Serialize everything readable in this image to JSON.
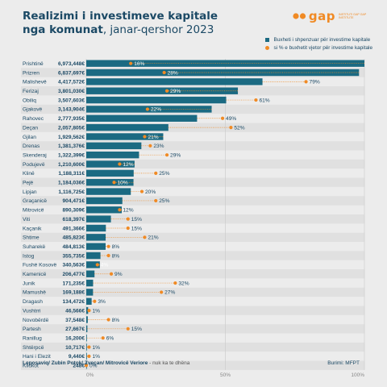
{
  "title": {
    "line1": "Realizimi i investimeve kapitale",
    "line2_bold": "nga komunat",
    "line2_rest": ", janar-qershor 2023"
  },
  "logo": {
    "word": "gap",
    "tagline": "Instituti GAP GAP Institute"
  },
  "legend": {
    "bar": "Buxheti i shpenzuar për investime kapitale",
    "dot": "si % e buxhetit vjetor për investime kapitale"
  },
  "footer": {
    "note_label": "Leposaviq/ Zubin Potok/ Zveçan/ Mitrovicë Veriore",
    "note_text": "- nuk ka te dhëna",
    "source": "Burimi: MFPT"
  },
  "colors": {
    "bar": "#1b6a82",
    "dot": "#f08a24",
    "background": "#ececec",
    "row_alt": "#e0e0e0"
  },
  "chart_data": {
    "type": "bar",
    "orientation": "horizontal",
    "xlim": [
      0,
      100
    ],
    "x_ticks": [
      "0%",
      "50%",
      "100%"
    ],
    "categories": [
      "Prishtinë",
      "Prizren",
      "Malishevë",
      "Ferizaj",
      "Obiliq",
      "Gjakovë",
      "Rahovec",
      "Deçan",
      "Gjilan",
      "Drenas",
      "Skenderaj",
      "Podujevë",
      "Klinë",
      "Pejë",
      "Lipjan",
      "Graçanicë",
      "Mitrovicë",
      "Viti",
      "Kaçanik",
      "Shtime",
      "Suharekë",
      "Istog",
      "Fushë Kosovë",
      "Kamenicë",
      "Junik",
      "Mamushë",
      "Dragash",
      "Vushtrri",
      "Novobërdë",
      "Partesh",
      "Ranillug",
      "Shtërpcë",
      "Hani i Elezit",
      "Kllokot"
    ],
    "series": [
      {
        "name": "Buxheti i shpenzuar për investime kapitale",
        "values": [
          6973448,
          6837697,
          4417572,
          3801030,
          3507603,
          3143904,
          2777935,
          2057805,
          1929562,
          1381376,
          1322399,
          1210600,
          1188311,
          1184036,
          1116725,
          904471,
          890309,
          618397,
          491366,
          485823,
          484813,
          355735,
          340563,
          206477,
          171235,
          169188,
          134472,
          46566,
          37548,
          27667,
          16200,
          10717,
          9440,
          248
        ],
        "labels": [
          "6,973,448€",
          "6,837,697€",
          "4,417,572€",
          "3,801,030€",
          "3,507,603€",
          "3,143,904€",
          "2,777,935€",
          "2,057,805€",
          "1,929,562€",
          "1,381,376€",
          "1,322,399€",
          "1,210,600€",
          "1,188,311€",
          "1,184,036€",
          "1,116,725€",
          "904,471€",
          "890,309€",
          "618,397€",
          "491,366€",
          "485,823€",
          "484,813€",
          "355,735€",
          "340,563€",
          "206,477€",
          "171,235€",
          "169,188€",
          "134,472€",
          "46,566€",
          "37,548€",
          "27,667€",
          "16,200€",
          "10,717€",
          "9,440€",
          "248€"
        ]
      },
      {
        "name": "si % e buxhetit vjetor për investime kapitale",
        "values": [
          16,
          28,
          79,
          29,
          61,
          22,
          49,
          52,
          21,
          23,
          29,
          12,
          25,
          10,
          20,
          25,
          12,
          15,
          15,
          21,
          8,
          8,
          4,
          9,
          32,
          27,
          3,
          1,
          8,
          15,
          6,
          1,
          1,
          0
        ],
        "labels": [
          "16%",
          "28%",
          "79%",
          "29%",
          "61%",
          "22%",
          "49%",
          "52%",
          "21%",
          "23%",
          "29%",
          "12%",
          "25%",
          "10%",
          "20%",
          "25%",
          "12%",
          "15%",
          "15%",
          "21%",
          "8%",
          "8%",
          "4%",
          "9%",
          "32%",
          "27%",
          "3%",
          "1%",
          "8%",
          "15%",
          "6%",
          "1%",
          "1%",
          "0%"
        ]
      }
    ]
  }
}
